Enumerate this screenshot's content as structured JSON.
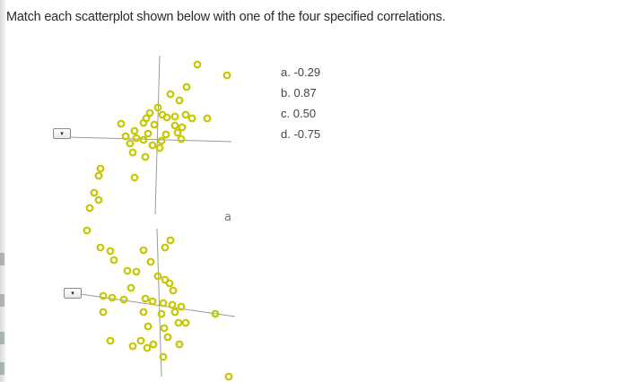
{
  "question": "Match each scatterplot shown below with one of the four specified correlations.",
  "options": [
    {
      "letter": "a.",
      "value": "-0.29"
    },
    {
      "letter": "b.",
      "value": "0.87"
    },
    {
      "letter": "c.",
      "value": "0.50"
    },
    {
      "letter": "d.",
      "value": "-0.75"
    }
  ],
  "dropdowns": [
    {
      "selected": "",
      "arrow": "▾"
    },
    {
      "selected": "",
      "arrow": "▾"
    }
  ],
  "plots": [
    {
      "label": ""
    },
    {
      "label": "a"
    }
  ],
  "colors": {
    "point": "#c7c700",
    "axis": "#999999",
    "text": "#2b2b2b"
  }
}
